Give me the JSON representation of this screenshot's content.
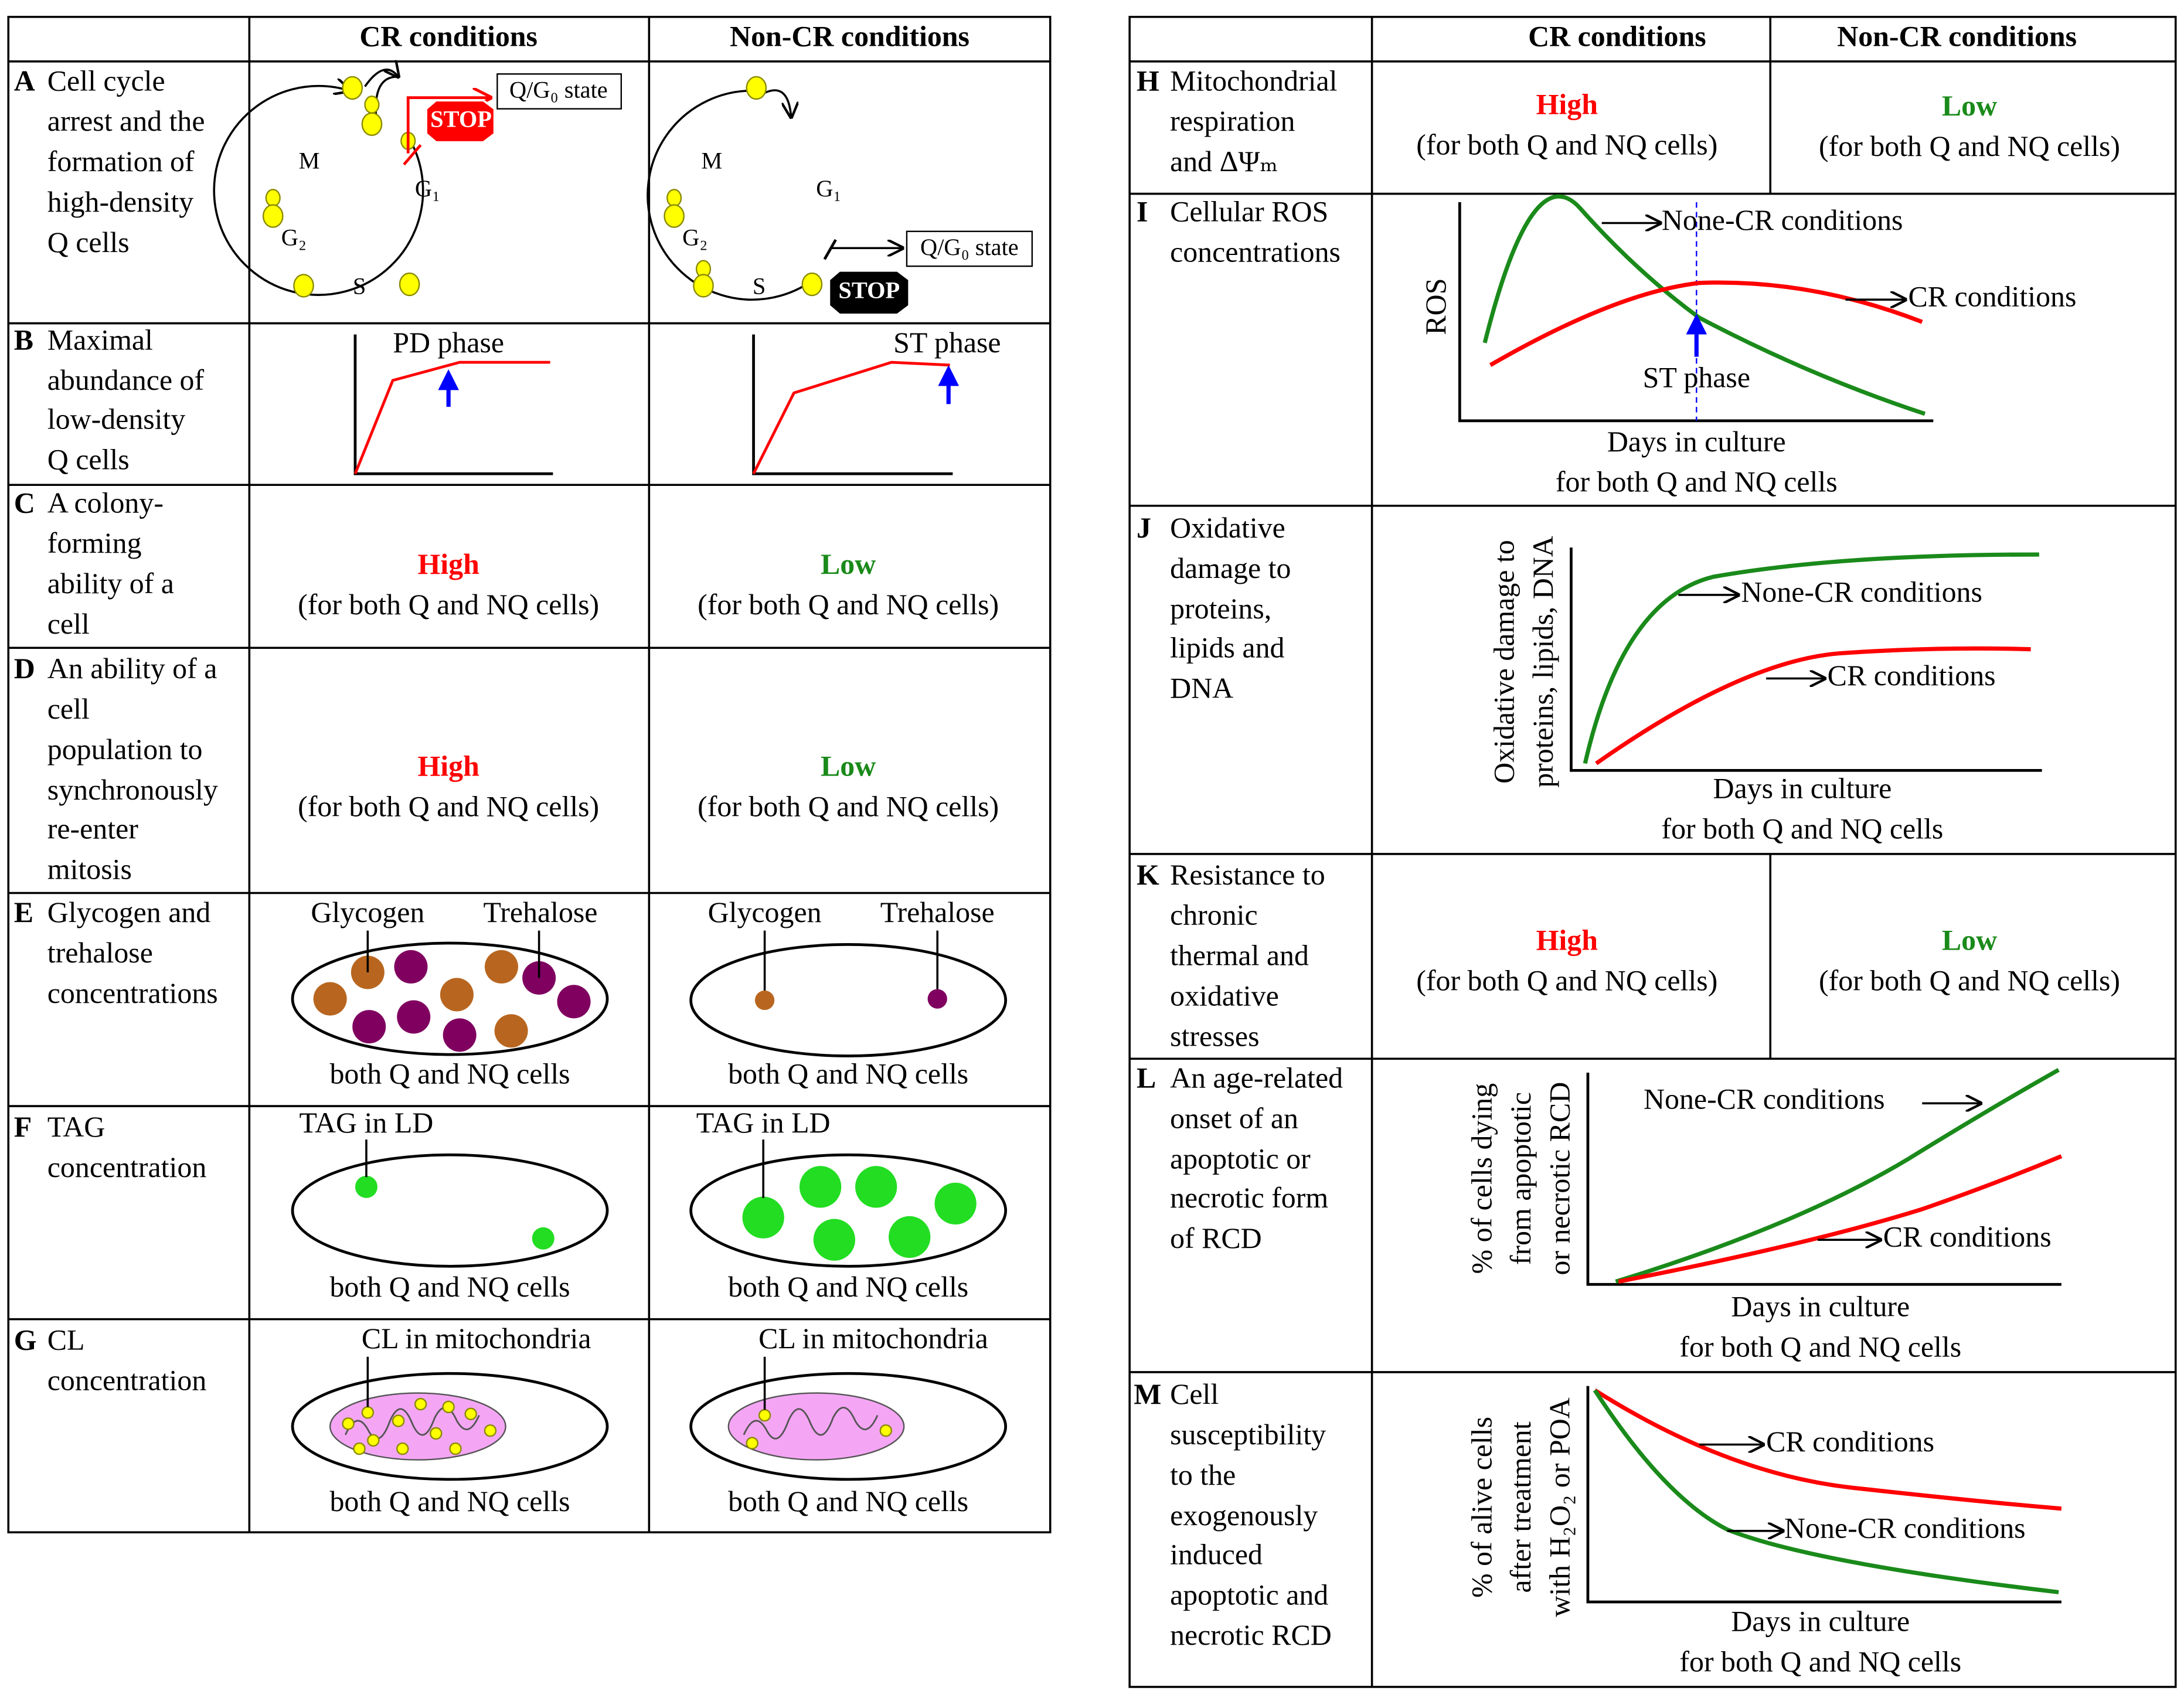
{
  "left_table": {
    "headers": [
      "CR conditions",
      "Non-CR conditions"
    ],
    "rows": [
      {
        "letter": "A",
        "label": [
          "Cell cycle",
          "arrest and the",
          "formation of",
          "high-density",
          "Q cells"
        ],
        "cr": {
          "phases": [
            "M",
            "G₁",
            "G₂",
            "S"
          ],
          "state": "Q/G₀ state",
          "stop": "STOP"
        },
        "non_cr": {
          "phases": [
            "M",
            "G₁",
            "G₂",
            "S"
          ],
          "state": "Q/G₀ state",
          "stop": "STOP"
        }
      },
      {
        "letter": "B",
        "label": [
          "Maximal",
          "abundance of",
          "low-density",
          "Q cells"
        ],
        "cr": {
          "phase": "PD phase"
        },
        "non_cr": {
          "phase": "ST phase"
        }
      },
      {
        "letter": "C",
        "label": [
          "A colony-",
          "forming",
          "ability  of a",
          "cell"
        ],
        "cr": {
          "level": "High",
          "note": "(for both Q and NQ cells)"
        },
        "non_cr": {
          "level": "Low",
          "note": "(for both Q and NQ cells)"
        }
      },
      {
        "letter": "D",
        "label": [
          "An ability  of a",
          "cell",
          "population to",
          "synchronously",
          "re-enter",
          "mitosis"
        ],
        "cr": {
          "level": "High",
          "note": "(for both Q and NQ cells)"
        },
        "non_cr": {
          "level": "Low",
          "note": "(for both Q and NQ cells)"
        }
      },
      {
        "letter": "E",
        "label": [
          "Glycogen and",
          "trehalose",
          "concentrations"
        ],
        "cr": {
          "labels": [
            "Glycogen",
            "Trehalose"
          ],
          "caption": "both Q and NQ cells"
        },
        "non_cr": {
          "labels": [
            "Glycogen",
            "Trehalose"
          ],
          "caption": "both Q and NQ cells"
        }
      },
      {
        "letter": "F",
        "label": [
          "TAG",
          "concentration"
        ],
        "cr": {
          "labels": [
            "TAG in LD"
          ],
          "caption": "both Q and NQ cells"
        },
        "non_cr": {
          "labels": [
            "TAG in LD"
          ],
          "caption": "both Q and NQ cells"
        }
      },
      {
        "letter": "G",
        "label": [
          "CL",
          "concentration"
        ],
        "cr": {
          "labels": [
            "CL in mitochondria"
          ],
          "caption": "both Q and NQ cells"
        },
        "non_cr": {
          "labels": [
            "CL in mitochondria"
          ],
          "caption": "both Q and NQ cells"
        }
      }
    ]
  },
  "right_table": {
    "headers": [
      "CR conditions",
      "Non-CR conditions"
    ],
    "rows": [
      {
        "letter": "H",
        "label": [
          "Mitochondrial",
          "respiration",
          "and ΔΨₘ"
        ],
        "cr": {
          "level": "High",
          "note": "(for both Q and NQ cells)"
        },
        "non_cr": {
          "level": "Low",
          "note": "(for both Q and NQ cells)"
        }
      },
      {
        "letter": "I",
        "label": [
          "Cellular ROS",
          "concentrations"
        ],
        "chart": {
          "y_label": [
            "ROS"
          ],
          "curve_labels": [
            "None-CR conditions",
            "CR conditions"
          ],
          "annotation": "ST phase",
          "x_label": [
            "Days in culture",
            "for both Q and NQ cells"
          ]
        }
      },
      {
        "letter": "J",
        "label": [
          "Oxidative",
          "damage to",
          "proteins,",
          "lipids and",
          "DNA"
        ],
        "chart": {
          "y_label": [
            "Oxidative damage to",
            "proteins, lipids, DNA"
          ],
          "curve_labels": [
            "None-CR conditions",
            "CR conditions"
          ],
          "x_label": [
            "Days in culture",
            "for both Q and NQ cells"
          ]
        }
      },
      {
        "letter": "K",
        "label": [
          "Resistance to",
          "chronic",
          "thermal and",
          "oxidative",
          "stresses"
        ],
        "cr": {
          "level": "High",
          "note": "(for both Q and NQ cells)"
        },
        "non_cr": {
          "level": "Low",
          "note": "(for both Q and NQ cells)"
        }
      },
      {
        "letter": "L",
        "label": [
          "An age-related",
          "onset of an",
          "apoptotic or",
          "necrotic form",
          "of RCD"
        ],
        "chart": {
          "y_label": [
            "% of cells dying",
            "from apoptotic",
            "or necrotic RCD"
          ],
          "curve_labels": [
            "None-CR conditions",
            "CR conditions"
          ],
          "x_label": [
            "Days in culture",
            "for both Q and NQ cells"
          ]
        }
      },
      {
        "letter": "M",
        "label": [
          "Cell",
          "susceptibility",
          "to the",
          "exogenously",
          "induced",
          "apoptotic and",
          "necrotic RCD"
        ],
        "chart": {
          "y_label": [
            "% of alive cells",
            "after treatment",
            "with H₂O₂ or POA"
          ],
          "curve_labels": [
            "CR conditions",
            "None-CR conditions"
          ],
          "x_label": [
            "Days in culture",
            "for both Q and NQ cells"
          ]
        }
      }
    ]
  }
}
